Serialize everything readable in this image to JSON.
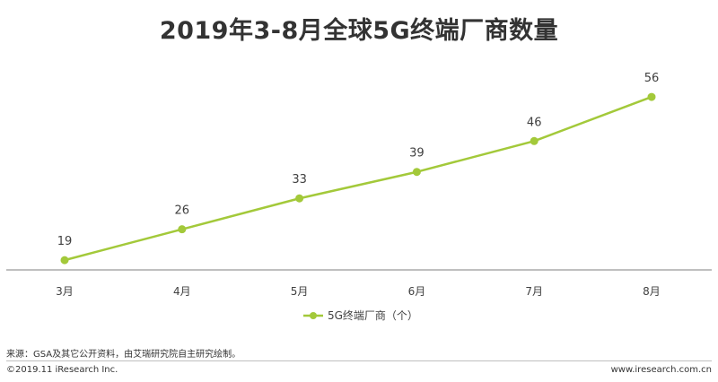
{
  "chart_data": {
    "type": "line",
    "title": "2019年3-8月全球5G终端厂商数量",
    "categories": [
      "3月",
      "4月",
      "5月",
      "6月",
      "7月",
      "8月"
    ],
    "series": [
      {
        "name": "5G终端厂商（个）",
        "values": [
          19,
          26,
          33,
          39,
          46,
          56
        ],
        "color": "#a3c93a"
      }
    ],
    "xlabel": "",
    "ylabel": "",
    "ylim": [
      0,
      70
    ],
    "grid": false,
    "legend": "bottom-center",
    "data_labels": true
  },
  "footer": {
    "source": "来源：GSA及其它公开资料，由艾瑞研究院自主研究绘制。",
    "copyright": "©2019.11 iResearch Inc.",
    "website": "www.iresearch.com.cn"
  }
}
